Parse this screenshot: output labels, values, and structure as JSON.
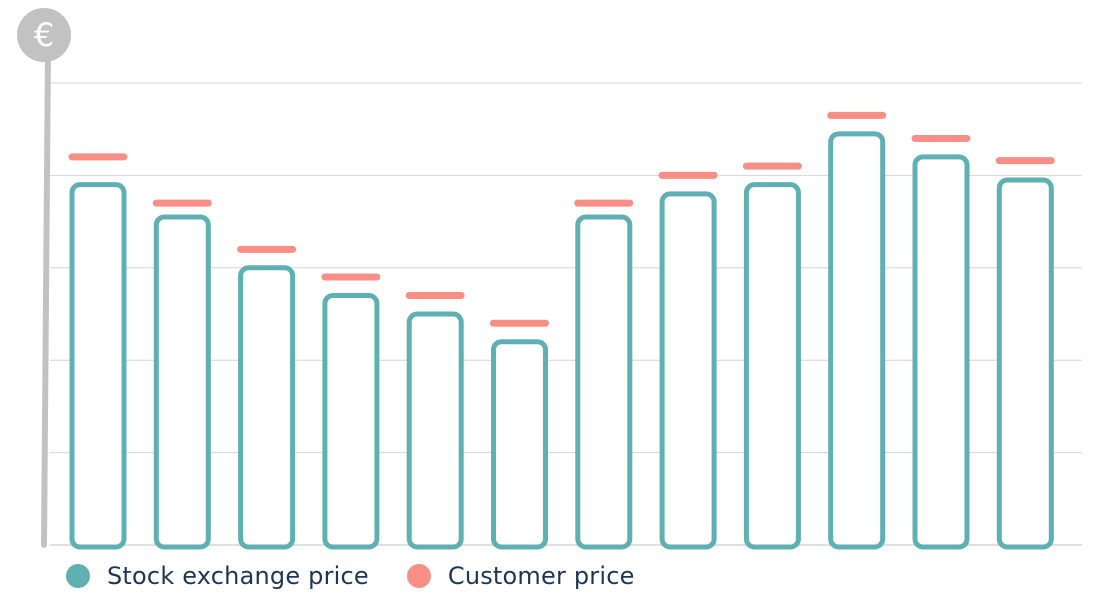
{
  "chart_data": {
    "type": "bar",
    "axis_symbol": "€",
    "categories": [
      "",
      "",
      "",
      "",
      "",
      "",
      "",
      "",
      "",
      "",
      "",
      ""
    ],
    "ylim": [
      0,
      5
    ],
    "grid": true,
    "series": [
      {
        "name": "Stock exchange price",
        "color": "#5fb0b2",
        "style": "outlined-bar",
        "values": [
          3.9,
          3.55,
          3.0,
          2.7,
          2.5,
          2.2,
          3.55,
          3.8,
          3.9,
          4.45,
          4.2,
          3.95
        ]
      },
      {
        "name": "Customer price",
        "color": "#f78f86",
        "style": "marker-line",
        "values": [
          4.2,
          3.7,
          3.2,
          2.9,
          2.7,
          2.4,
          3.7,
          4.0,
          4.1,
          4.65,
          4.4,
          4.16
        ]
      }
    ],
    "legend_position": "bottom-left"
  },
  "colors": {
    "axis": "#c2c2c2",
    "grid": "#d6d6d6",
    "text": "#1d3557"
  }
}
